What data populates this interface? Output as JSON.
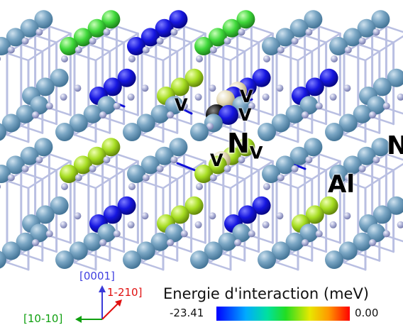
{
  "labels": {
    "nv": "N",
    "nv_sub": "V",
    "n_edge": "N",
    "al": "Al",
    "v_marker": "V"
  },
  "colorbar": {
    "title": "Energie d'interaction (meV)",
    "min": "-23.41",
    "max": "0.00"
  },
  "axes": {
    "vertical": "[0001]",
    "diagonal": "1-210]",
    "horizontal": "[10-10]"
  },
  "colors": {
    "al_atom": "#6f9fbf",
    "n_atom": "#a9aed6",
    "bond": "#b9bfe2",
    "strong": "#1010d8",
    "green": "#46d93c",
    "yellow_green": "#a8e020",
    "beige": "#e6dcb8",
    "vacancy": "#111111"
  },
  "icons": [
    "axis-arrow-icon"
  ]
}
